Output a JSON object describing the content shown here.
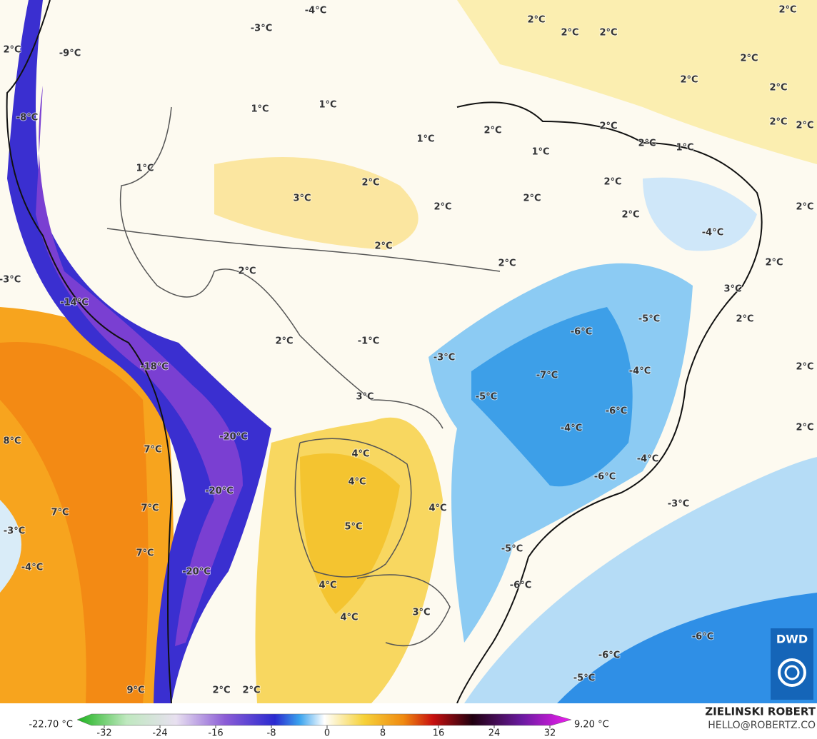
{
  "map": {
    "labels": [
      "-4°C",
      "2°C",
      "2°C",
      "2°C",
      "2°C",
      "2°C",
      "-9°C",
      "-3°C",
      "2°C",
      "2°C",
      "2°C",
      "-8°C",
      "1°C",
      "1°C",
      "2°C",
      "2°C",
      "1°C",
      "2°C",
      "2°C",
      "2°C",
      "1°C",
      "1°C",
      "1°C",
      "2°C",
      "2°C",
      "3°C",
      "2°C",
      "2°C",
      "2°C",
      "2°C",
      "-4°C",
      "2°C",
      "2°C",
      "2°C",
      "2°C",
      "-3°C",
      "3°C",
      "-14°C",
      "-5°C",
      "2°C",
      "-6°C",
      "2°C",
      "-1°C",
      "-3°C",
      "-18°C",
      "-4°C",
      "2°C",
      "-7°C",
      "3°C",
      "-5°C",
      "-6°C",
      "-20°C",
      "-4°C",
      "2°C",
      "8°C",
      "7°C",
      "4°C",
      "-4°C",
      "4°C",
      "-6°C",
      "-20°C",
      "7°C",
      "7°C",
      "4°C",
      "-3°C",
      "5°C",
      "-3°C",
      "-5°C",
      "7°C",
      "-4°C",
      "-20°C",
      "-6°C",
      "4°C",
      "4°C",
      "3°C",
      "-6°C",
      "-6°C",
      "-5°C",
      "9°C",
      "2°C",
      "2°C"
    ],
    "logo": "DWD"
  },
  "colorbar": {
    "min_label": "-22.70 °C",
    "max_label": "9.20 °C",
    "ticks": [
      -32,
      -24,
      -16,
      -8,
      0,
      8,
      16,
      24,
      32
    ]
  },
  "credit": {
    "name": "ZIELINSKI ROBERT",
    "contact": "HELLO@ROBERTZ.CO"
  }
}
